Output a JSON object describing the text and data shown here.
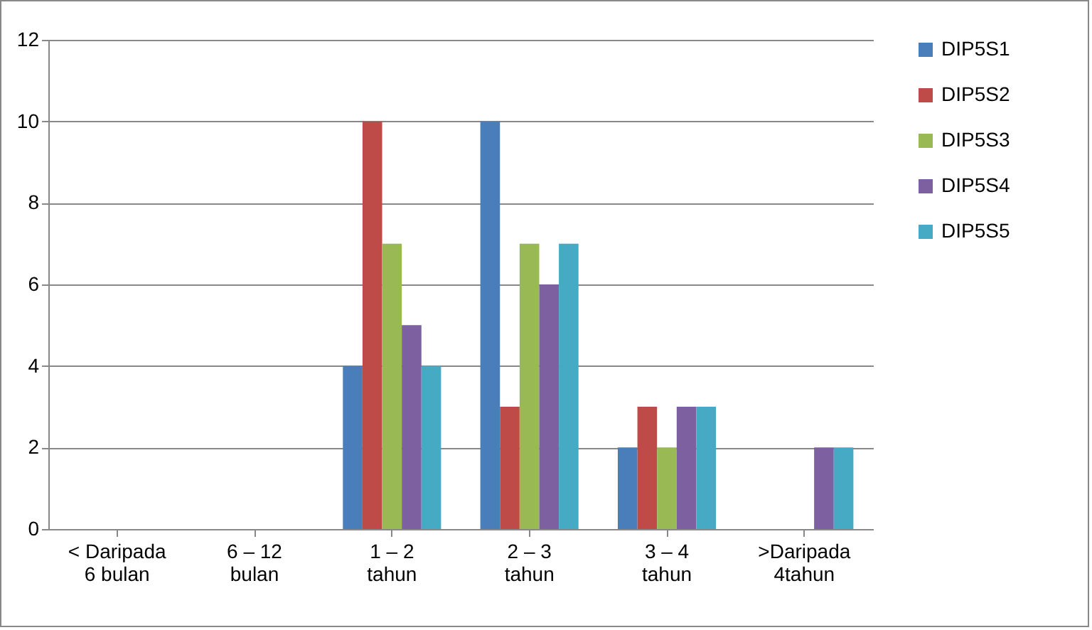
{
  "chart_data": {
    "type": "bar",
    "categories": [
      "< Daripada\n6 bulan",
      "6 – 12\nbulan",
      "1 – 2\ntahun",
      "2 – 3\ntahun",
      "3 – 4\ntahun",
      ">Daripada\n4tahun"
    ],
    "series": [
      {
        "name": "DIP5S1",
        "color": "#4a7ebb",
        "values": [
          0,
          0,
          4,
          10,
          2,
          0
        ]
      },
      {
        "name": "DIP5S2",
        "color": "#be4b48",
        "values": [
          0,
          0,
          10,
          3,
          3,
          0
        ]
      },
      {
        "name": "DIP5S3",
        "color": "#98b954",
        "values": [
          0,
          0,
          7,
          7,
          2,
          0
        ]
      },
      {
        "name": "DIP5S4",
        "color": "#7d60a0",
        "values": [
          0,
          0,
          5,
          6,
          3,
          2
        ]
      },
      {
        "name": "DIP5S5",
        "color": "#46aac5",
        "values": [
          0,
          0,
          4,
          7,
          3,
          2
        ]
      }
    ],
    "ylim": [
      0,
      12
    ],
    "yticks": [
      0,
      2,
      4,
      6,
      8,
      10,
      12
    ],
    "grid": "y",
    "legend": "right"
  }
}
